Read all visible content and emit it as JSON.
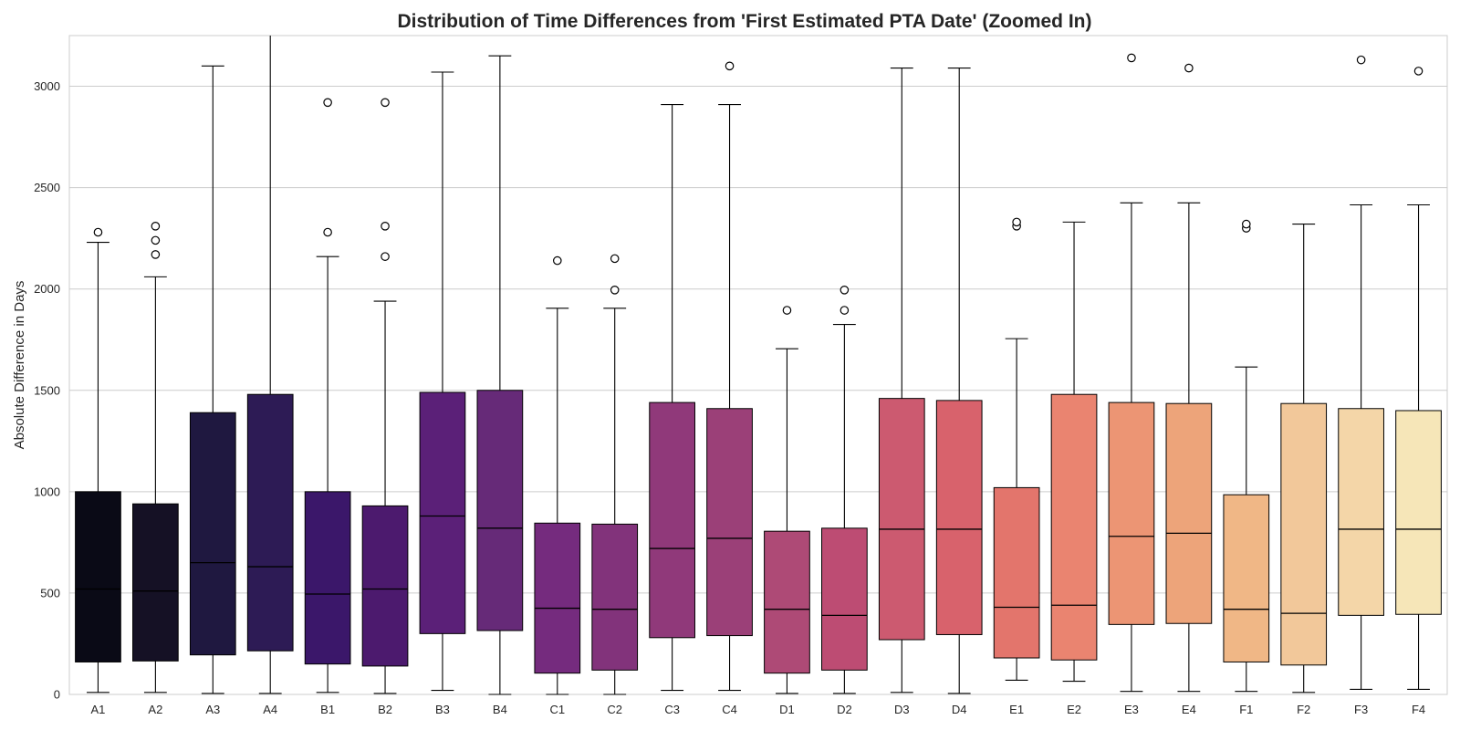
{
  "chart_data": {
    "type": "box",
    "title": "Distribution of Time Differences from 'First Estimated PTA Date' (Zoomed In)",
    "xlabel": "",
    "ylabel": "Absolute Difference in Days",
    "ylim": [
      0,
      3250
    ],
    "yticks": [
      0,
      500,
      1000,
      1500,
      2000,
      2500,
      3000
    ],
    "grid": true,
    "legend": "none",
    "categories": [
      "A1",
      "A2",
      "A3",
      "A4",
      "B1",
      "B2",
      "B3",
      "B4",
      "C1",
      "C2",
      "C3",
      "C4",
      "D1",
      "D2",
      "D3",
      "D4",
      "E1",
      "E2",
      "E3",
      "E4",
      "F1",
      "F2",
      "F3",
      "F4"
    ],
    "colors": [
      "#0a0a16",
      "#151125",
      "#1f1840",
      "#2d1b55",
      "#3b176a",
      "#4c1a6e",
      "#5b2078",
      "#662a78",
      "#752b7e",
      "#82337b",
      "#90397a",
      "#9b4078",
      "#ae4a76",
      "#bd4c73",
      "#cc5a70",
      "#d8626c",
      "#e3756c",
      "#ea8470",
      "#ec9574",
      "#eda47a",
      "#f0b786",
      "#f2c89a",
      "#f4d6a8",
      "#f6e6b8"
    ],
    "boxes": [
      {
        "min": 10,
        "q1": 160,
        "median": 520,
        "q3": 1000,
        "max": 2230,
        "outliers": [
          2280
        ]
      },
      {
        "min": 10,
        "q1": 165,
        "median": 510,
        "q3": 940,
        "max": 2060,
        "outliers": [
          2170,
          2240,
          2310
        ]
      },
      {
        "min": 5,
        "q1": 195,
        "median": 650,
        "q3": 1390,
        "max": 3100,
        "outliers": []
      },
      {
        "min": 5,
        "q1": 215,
        "median": 630,
        "q3": 1480,
        "max": 3300,
        "outliers": []
      },
      {
        "min": 10,
        "q1": 150,
        "median": 495,
        "q3": 1000,
        "max": 2160,
        "outliers": [
          2280,
          2920
        ]
      },
      {
        "min": 5,
        "q1": 140,
        "median": 520,
        "q3": 930,
        "max": 1940,
        "outliers": [
          2160,
          2310,
          2920
        ]
      },
      {
        "min": 20,
        "q1": 300,
        "median": 880,
        "q3": 1490,
        "max": 3070,
        "outliers": []
      },
      {
        "min": 0,
        "q1": 315,
        "median": 820,
        "q3": 1500,
        "max": 3150,
        "outliers": []
      },
      {
        "min": 0,
        "q1": 105,
        "median": 425,
        "q3": 845,
        "max": 1905,
        "outliers": [
          2140
        ]
      },
      {
        "min": 0,
        "q1": 120,
        "median": 420,
        "q3": 840,
        "max": 1905,
        "outliers": [
          1995,
          2150
        ]
      },
      {
        "min": 20,
        "q1": 280,
        "median": 720,
        "q3": 1440,
        "max": 2910,
        "outliers": []
      },
      {
        "min": 20,
        "q1": 290,
        "median": 770,
        "q3": 1410,
        "max": 2910,
        "outliers": [
          3100
        ]
      },
      {
        "min": 5,
        "q1": 105,
        "median": 420,
        "q3": 805,
        "max": 1705,
        "outliers": [
          1895
        ]
      },
      {
        "min": 5,
        "q1": 120,
        "median": 390,
        "q3": 820,
        "max": 1825,
        "outliers": [
          1895,
          1995
        ]
      },
      {
        "min": 10,
        "q1": 270,
        "median": 815,
        "q3": 1460,
        "max": 3090,
        "outliers": []
      },
      {
        "min": 5,
        "q1": 295,
        "median": 815,
        "q3": 1450,
        "max": 3090,
        "outliers": []
      },
      {
        "min": 70,
        "q1": 180,
        "median": 430,
        "q3": 1020,
        "max": 1755,
        "outliers": [
          2310,
          2330
        ]
      },
      {
        "min": 65,
        "q1": 170,
        "median": 440,
        "q3": 1480,
        "max": 2330,
        "outliers": []
      },
      {
        "min": 15,
        "q1": 345,
        "median": 780,
        "q3": 1440,
        "max": 2425,
        "outliers": [
          3140
        ]
      },
      {
        "min": 15,
        "q1": 350,
        "median": 795,
        "q3": 1435,
        "max": 2425,
        "outliers": [
          3090
        ]
      },
      {
        "min": 15,
        "q1": 160,
        "median": 420,
        "q3": 985,
        "max": 1615,
        "outliers": [
          2300,
          2320
        ]
      },
      {
        "min": 10,
        "q1": 145,
        "median": 400,
        "q3": 1435,
        "max": 2320,
        "outliers": []
      },
      {
        "min": 25,
        "q1": 390,
        "median": 815,
        "q3": 1410,
        "max": 2415,
        "outliers": [
          3130
        ]
      },
      {
        "min": 25,
        "q1": 395,
        "median": 815,
        "q3": 1400,
        "max": 2415,
        "outliers": [
          3075
        ]
      }
    ]
  }
}
